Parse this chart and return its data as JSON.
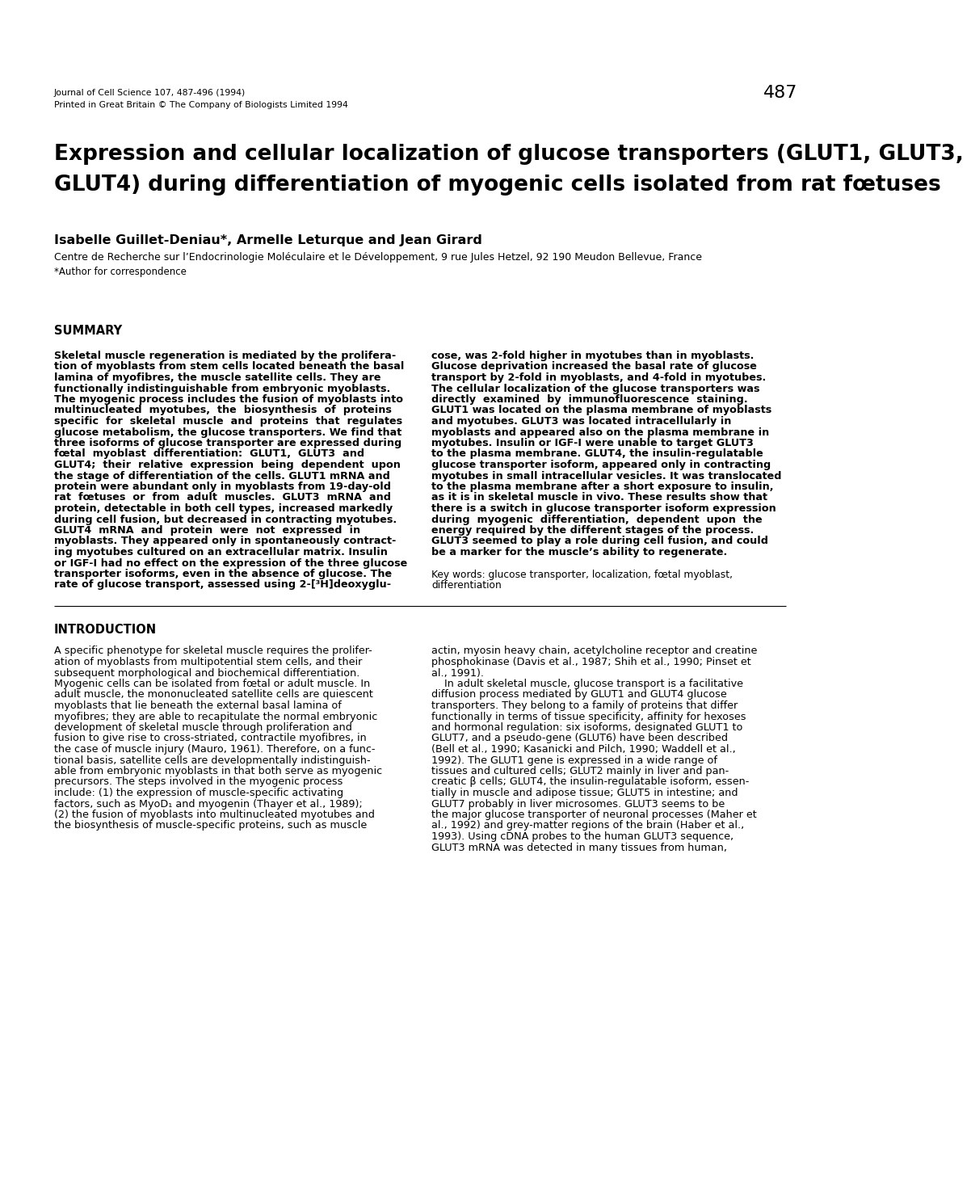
{
  "journal_line1": "Journal of Cell Science 107, 487-496 (1994)",
  "journal_line2": "Printed in Great Britain © The Company of Biologists Limited 1994",
  "page_number": "487",
  "title_line1": "Expression and cellular localization of glucose transporters (GLUT1, GLUT3,",
  "title_line2": "GLUT4) during differentiation of myogenic cells isolated from rat fœtuses",
  "authors": "Isabelle Guillet-Deniau*, Armelle Leturque and Jean Girard",
  "affiliation": "Centre de Recherche sur l’Endocrinologie Moléculaire et le Développement, 9 rue Jules Hetzel, 92 190 Meudon Bellevue, France",
  "correspondence": "*Author for correspondence",
  "summary_heading": "SUMMARY",
  "summary_left": "Skeletal muscle regeneration is mediated by the prolifera-\ntion of myoblasts from stem cells located beneath the basal\nlamina of myofibres, the muscle satellite cells. They are\nfunctionally indistinguishable from embryonic myoblasts.\nThe myogenic process includes the fusion of myoblasts into\nmultinucleated  myotubes,  the  biosynthesis  of  proteins\nspecific  for  skeletal  muscle  and  proteins  that  regulates\nglucose metabolism, the glucose transporters. We find that\nthree isoforms of glucose transporter are expressed during\nfœtal  myoblast  differentiation:  GLUT1,  GLUT3  and\nGLUT4;  their  relative  expression  being  dependent  upon\nthe stage of differentiation of the cells. GLUT1 mRNA and\nprotein were abundant only in myoblasts from 19-day-old\nrat  fœtuses  or  from  adult  muscles.  GLUT3  mRNA  and\nprotein, detectable in both cell types, increased markedly\nduring cell fusion, but decreased in contracting myotubes.\nGLUT4  mRNA  and  protein  were  not  expressed  in\nmyoblasts. They appeared only in spontaneously contract-\ning myotubes cultured on an extracellular matrix. Insulin\nor IGF-I had no effect on the expression of the three glucose\ntransporter isoforms, even in the absence of glucose. The\nrate of glucose transport, assessed using 2-[³H]deoxyglu-",
  "summary_right": "cose, was 2-fold higher in myotubes than in myoblasts.\nGlucose deprivation increased the basal rate of glucose\ntransport by 2-fold in myoblasts, and 4-fold in myotubes.\nThe cellular localization of the glucose transporters was\ndirectly  examined  by  immunofluorescence  staining.\nGLUT1 was located on the plasma membrane of myoblasts\nand myotubes. GLUT3 was located intracellularly in\nmyoblasts and appeared also on the plasma membrane in\nmyotubes. Insulin or IGF-I were unable to target GLUT3\nto the plasma membrane. GLUT4, the insulin-regulatable\nglucose transporter isoform, appeared only in contracting\nmyotubes in small intracellular vesicles. It was translocated\nto the plasma membrane after a short exposure to insulin,\nas it is in skeletal muscle in vivo. These results show that\nthere is a switch in glucose transporter isoform expression\nduring  myogenic  differentiation,  dependent  upon  the\nenergy required by the different stages of the process.\nGLUT3 seemed to play a role during cell fusion, and could\nbe a marker for the muscle’s ability to regenerate.",
  "keywords_line1": "Key words: glucose transporter, localization, fœtal myoblast,",
  "keywords_line2": "differentiation",
  "intro_heading": "INTRODUCTION",
  "intro_left": "A specific phenotype for skeletal muscle requires the prolifer-\nation of myoblasts from multipotential stem cells, and their\nsubsequent morphological and biochemical differentiation.\nMyogenic cells can be isolated from fœtal or adult muscle. In\nadult muscle, the mononucleated satellite cells are quiescent\nmyoblasts that lie beneath the external basal lamina of\nmyofibres; they are able to recapitulate the normal embryonic\ndevelopment of skeletal muscle through proliferation and\nfusion to give rise to cross-striated, contractile myofibres, in\nthe case of muscle injury (Mauro, 1961). Therefore, on a func-\ntional basis, satellite cells are developmentally indistinguish-\nable from embryonic myoblasts in that both serve as myogenic\nprecursors. The steps involved in the myogenic process\ninclude: (1) the expression of muscle-specific activating\nfactors, such as MyoD₁ and myogenin (Thayer et al., 1989);\n(2) the fusion of myoblasts into multinucleated myotubes and\nthe biosynthesis of muscle-specific proteins, such as muscle",
  "intro_right": "actin, myosin heavy chain, acetylcholine receptor and creatine\nphosphokinase (Davis et al., 1987; Shih et al., 1990; Pinset et\nal., 1991).\n    In adult skeletal muscle, glucose transport is a facilitative\ndiffusion process mediated by GLUT1 and GLUT4 glucose\ntransporters. They belong to a family of proteins that differ\nfunctionally in terms of tissue specificity, affinity for hexoses\nand hormonal regulation: six isoforms, designated GLUT1 to\nGLUT7, and a pseudo-gene (GLUT6) have been described\n(Bell et al., 1990; Kasanicki and Pilch, 1990; Waddell et al.,\n1992). The GLUT1 gene is expressed in a wide range of\ntissues and cultured cells; GLUT2 mainly in liver and pan-\ncreatic β cells; GLUT4, the insulin-regulatable isoform, essen-\ntially in muscle and adipose tissue; GLUT5 in intestine; and\nGLUT7 probably in liver microsomes. GLUT3 seems to be\nthe major glucose transporter of neuronal processes (Maher et\nal., 1992) and grey-matter regions of the brain (Haber et al.,\n1993). Using cDNA probes to the human GLUT3 sequence,\nGLUT3 mRNA was detected in many tissues from human,"
}
